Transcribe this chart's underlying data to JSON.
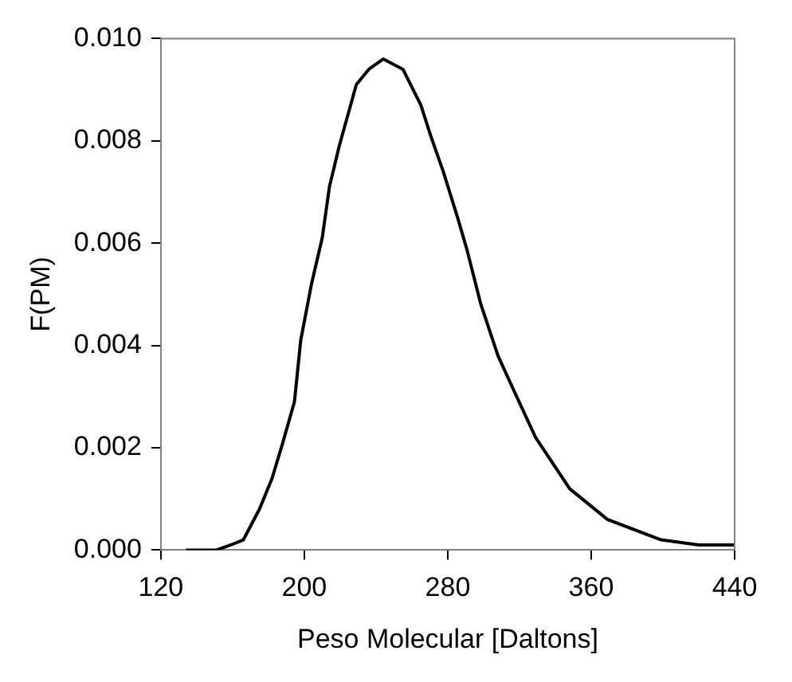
{
  "chart_data": {
    "type": "line",
    "xlabel": "Peso Molecular [Daltons]",
    "ylabel": "F(PM)",
    "x": [
      134,
      151,
      159,
      166,
      170.5,
      175,
      182,
      188,
      194.5,
      198,
      204,
      210,
      214,
      219.5,
      229,
      236,
      244,
      255,
      265,
      270.5,
      277.5,
      285.5,
      290.5,
      298.5,
      308,
      314.5,
      329,
      348,
      369,
      399,
      420,
      440
    ],
    "series": [
      {
        "color": "#000000",
        "values": [
          0,
          0,
          0.0001,
          0.0002,
          0.0005,
          0.0008,
          0.0014,
          0.0021,
          0.0029,
          0.0041,
          0.0052,
          0.0061,
          0.0071,
          0.0079,
          0.0091,
          0.0094,
          0.0096,
          0.0094,
          0.0087,
          0.0081,
          0.0074,
          0.0065,
          0.0059,
          0.0048,
          0.0038,
          0.0033,
          0.0022,
          0.0012,
          0.0006,
          0.0002,
          0.0001,
          0.0001
        ]
      }
    ],
    "xlim": [
      120,
      440
    ],
    "xticks": [
      120,
      200,
      280,
      360,
      440
    ],
    "ylim": [
      0,
      0.01
    ],
    "yticks": [
      {
        "value": 0,
        "label": "0.000"
      },
      {
        "value": 0.002,
        "label": "0.002"
      },
      {
        "value": 0.004,
        "label": "0.004"
      },
      {
        "value": 0.006,
        "label": "0.006"
      },
      {
        "value": 0.008,
        "label": "0.008"
      },
      {
        "value": 0.01,
        "label": "0.010"
      }
    ],
    "grid": false,
    "legend": false,
    "marker": "none",
    "line_style": "solid"
  }
}
